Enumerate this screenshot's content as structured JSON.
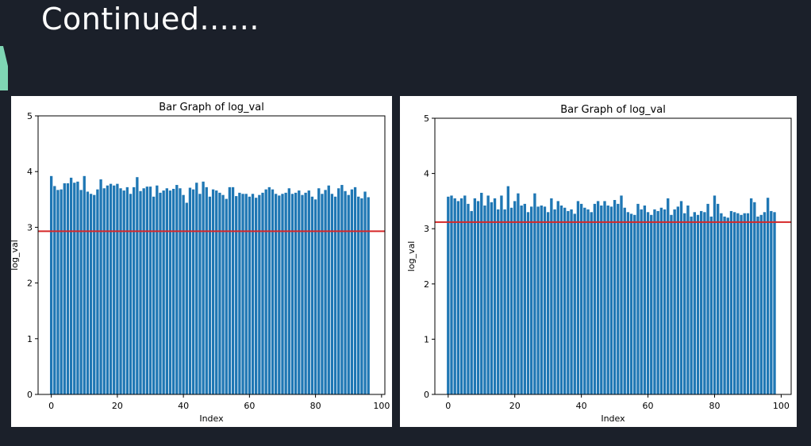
{
  "slide": {
    "title": "Continued......"
  },
  "colors": {
    "bar": "#1f77b4",
    "threshold": "#d62728",
    "background": "#1b202a",
    "accent": "#7fd6b4"
  },
  "chart_data": [
    {
      "type": "bar",
      "title": "Bar Graph of log_val",
      "xlabel": "Index",
      "ylabel": "log_val",
      "xlim": [
        -4,
        101
      ],
      "ylim": [
        0,
        5
      ],
      "xticks": [
        0,
        20,
        40,
        60,
        80,
        100
      ],
      "yticks": [
        0,
        1,
        2,
        3,
        4,
        5
      ],
      "threshold": 2.93,
      "x": [
        0,
        1,
        2,
        3,
        4,
        5,
        6,
        7,
        8,
        9,
        10,
        11,
        12,
        13,
        14,
        15,
        16,
        17,
        18,
        19,
        20,
        21,
        22,
        23,
        24,
        25,
        26,
        27,
        28,
        29,
        30,
        31,
        32,
        33,
        34,
        35,
        36,
        37,
        38,
        39,
        40,
        41,
        42,
        43,
        44,
        45,
        46,
        47,
        48,
        49,
        50,
        51,
        52,
        53,
        54,
        55,
        56,
        57,
        58,
        59,
        60,
        61,
        62,
        63,
        64,
        65,
        66,
        67,
        68,
        69,
        70,
        71,
        72,
        73,
        74,
        75,
        76,
        77,
        78,
        79,
        80,
        81,
        82,
        83,
        84,
        85,
        86,
        87,
        88,
        89,
        90,
        91,
        92,
        93,
        94,
        95,
        96
      ],
      "values": [
        3.92,
        3.74,
        3.67,
        3.68,
        3.79,
        3.79,
        3.89,
        3.8,
        3.82,
        3.67,
        3.92,
        3.64,
        3.6,
        3.58,
        3.68,
        3.86,
        3.7,
        3.75,
        3.78,
        3.75,
        3.78,
        3.7,
        3.66,
        3.72,
        3.6,
        3.72,
        3.9,
        3.65,
        3.7,
        3.73,
        3.73,
        3.55,
        3.75,
        3.62,
        3.66,
        3.7,
        3.66,
        3.69,
        3.76,
        3.7,
        3.58,
        3.44,
        3.71,
        3.68,
        3.8,
        3.6,
        3.82,
        3.72,
        3.55,
        3.68,
        3.66,
        3.62,
        3.58,
        3.51,
        3.72,
        3.72,
        3.56,
        3.62,
        3.6,
        3.6,
        3.55,
        3.6,
        3.53,
        3.58,
        3.62,
        3.68,
        3.72,
        3.68,
        3.6,
        3.57,
        3.6,
        3.62,
        3.7,
        3.6,
        3.62,
        3.66,
        3.58,
        3.62,
        3.66,
        3.55,
        3.5,
        3.7,
        3.6,
        3.67,
        3.75,
        3.6,
        3.55,
        3.7,
        3.76,
        3.65,
        3.58,
        3.68,
        3.72,
        3.55,
        3.52,
        3.64,
        3.54
      ]
    },
    {
      "type": "bar",
      "title": "Bar Graph of log_val",
      "xlabel": "Index",
      "ylabel": "log_val",
      "xlim": [
        -4,
        103
      ],
      "ylim": [
        0,
        5
      ],
      "xticks": [
        0,
        20,
        40,
        60,
        80,
        100
      ],
      "yticks": [
        0,
        1,
        2,
        3,
        4,
        5
      ],
      "threshold": 3.12,
      "x": [
        0,
        1,
        2,
        3,
        4,
        5,
        6,
        7,
        8,
        9,
        10,
        11,
        12,
        13,
        14,
        15,
        16,
        17,
        18,
        19,
        20,
        21,
        22,
        23,
        24,
        25,
        26,
        27,
        28,
        29,
        30,
        31,
        32,
        33,
        34,
        35,
        36,
        37,
        38,
        39,
        40,
        41,
        42,
        43,
        44,
        45,
        46,
        47,
        48,
        49,
        50,
        51,
        52,
        53,
        54,
        55,
        56,
        57,
        58,
        59,
        60,
        61,
        62,
        63,
        64,
        65,
        66,
        67,
        68,
        69,
        70,
        71,
        72,
        73,
        74,
        75,
        76,
        77,
        78,
        79,
        80,
        81,
        82,
        83,
        84,
        85,
        86,
        87,
        88,
        89,
        90,
        91,
        92,
        93,
        94,
        95,
        96,
        97,
        98
      ],
      "values": [
        3.58,
        3.6,
        3.55,
        3.5,
        3.55,
        3.6,
        3.45,
        3.32,
        3.55,
        3.5,
        3.65,
        3.42,
        3.6,
        3.48,
        3.55,
        3.35,
        3.6,
        3.35,
        3.77,
        3.38,
        3.5,
        3.64,
        3.42,
        3.45,
        3.3,
        3.4,
        3.64,
        3.4,
        3.42,
        3.4,
        3.3,
        3.55,
        3.35,
        3.5,
        3.42,
        3.38,
        3.32,
        3.35,
        3.27,
        3.5,
        3.45,
        3.38,
        3.35,
        3.3,
        3.45,
        3.5,
        3.42,
        3.5,
        3.42,
        3.4,
        3.52,
        3.45,
        3.6,
        3.38,
        3.3,
        3.27,
        3.25,
        3.45,
        3.35,
        3.42,
        3.3,
        3.25,
        3.35,
        3.32,
        3.38,
        3.35,
        3.55,
        3.25,
        3.35,
        3.4,
        3.5,
        3.28,
        3.42,
        3.22,
        3.3,
        3.25,
        3.32,
        3.3,
        3.45,
        3.22,
        3.6,
        3.45,
        3.28,
        3.22,
        3.2,
        3.32,
        3.3,
        3.28,
        3.25,
        3.28,
        3.28,
        3.55,
        3.48,
        3.22,
        3.25,
        3.3,
        3.56,
        3.32,
        3.3
      ]
    }
  ]
}
